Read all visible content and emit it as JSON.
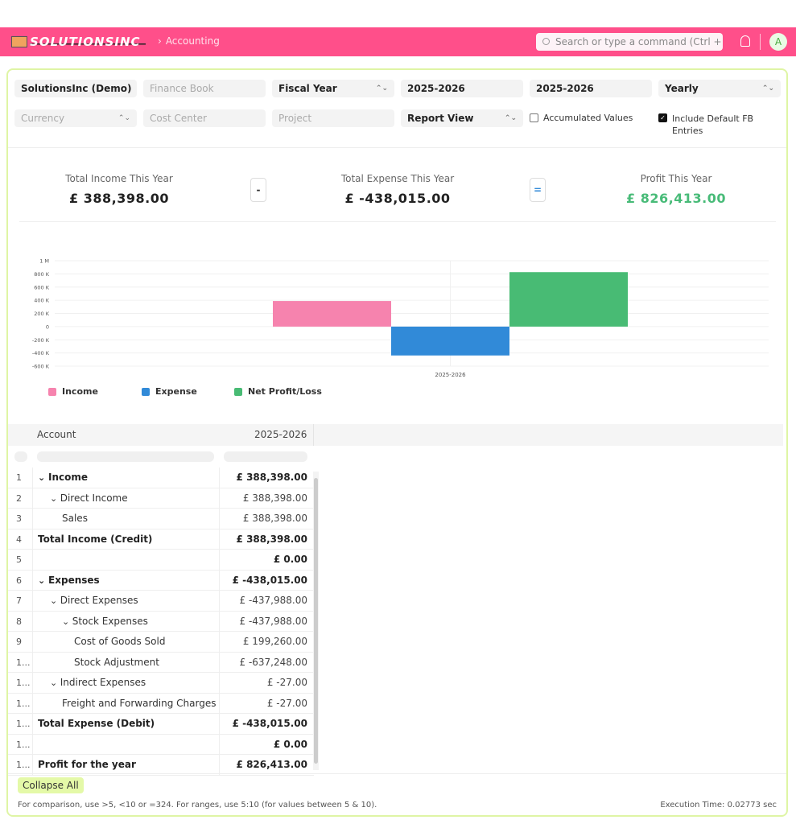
{
  "navbar": {
    "brand": "SOLUTIONSINC",
    "breadcrumb": "Accounting",
    "search_placeholder": "Search or type a command (Ctrl + G)",
    "avatar_initial": "A",
    "accent": "#ff4f8a"
  },
  "filters": {
    "company": "SolutionsInc (Demo)",
    "finance_book": "Finance Book",
    "filter_based_on": "Fiscal Year",
    "from_fiscal_year": "2025-2026",
    "to_fiscal_year": "2025-2026",
    "periodicity": "Yearly",
    "currency": "Currency",
    "cost_center": "Cost Center",
    "project": "Project",
    "report_view": "Report View",
    "accumulated_values": {
      "label": "Accumulated Values",
      "checked": false
    },
    "include_default_fb": {
      "label": "Include Default FB Entries",
      "checked": true
    }
  },
  "summary": {
    "income_label": "Total Income This Year",
    "income_value": "£ 388,398.00",
    "minus_symbol": "-",
    "expense_label": "Total Expense This Year",
    "expense_value": "£ -438,015.00",
    "equals_symbol": "=",
    "profit_label": "Profit This Year",
    "profit_value": "£ 826,413.00"
  },
  "chart_data": {
    "type": "bar",
    "categories": [
      "2025-2026"
    ],
    "series": [
      {
        "name": "Income",
        "values": [
          388398
        ],
        "color": "#f683ae"
      },
      {
        "name": "Expense",
        "values": [
          -438015
        ],
        "color": "#318ad8"
      },
      {
        "name": "Net Profit/Loss",
        "values": [
          826413
        ],
        "color": "#48bb74"
      }
    ],
    "yticks": [
      "1 M",
      "800 K",
      "600 K",
      "400 K",
      "200 K",
      "0",
      "-200 K",
      "-400 K",
      "-600 K"
    ],
    "ytick_values": [
      1000000,
      800000,
      600000,
      400000,
      200000,
      0,
      -200000,
      -400000,
      -600000
    ],
    "ylim": [
      -600000,
      1000000
    ],
    "grid": true,
    "legend_position": "bottom-left"
  },
  "table": {
    "columns": [
      "Account",
      "2025-2026"
    ],
    "rows": [
      {
        "num": "1",
        "account": "Income",
        "amount": "£ 388,398.00",
        "indent": 0,
        "bold": true,
        "toggle": true
      },
      {
        "num": "2",
        "account": "Direct Income",
        "amount": "£ 388,398.00",
        "indent": 1,
        "bold": false,
        "toggle": true
      },
      {
        "num": "3",
        "account": "Sales",
        "amount": "£ 388,398.00",
        "indent": 2,
        "bold": false,
        "toggle": false
      },
      {
        "num": "4",
        "account": "Total Income (Credit)",
        "amount": "£ 388,398.00",
        "indent": 0,
        "bold": true,
        "toggle": false
      },
      {
        "num": "5",
        "account": "",
        "amount": "£ 0.00",
        "indent": 0,
        "bold": true,
        "toggle": false
      },
      {
        "num": "6",
        "account": "Expenses",
        "amount": "£ -438,015.00",
        "indent": 0,
        "bold": true,
        "toggle": true
      },
      {
        "num": "7",
        "account": "Direct Expenses",
        "amount": "£ -437,988.00",
        "indent": 1,
        "bold": false,
        "toggle": true
      },
      {
        "num": "8",
        "account": "Stock Expenses",
        "amount": "£ -437,988.00",
        "indent": 2,
        "bold": false,
        "toggle": true
      },
      {
        "num": "9",
        "account": "Cost of Goods Sold",
        "amount": "£ 199,260.00",
        "indent": 3,
        "bold": false,
        "toggle": false
      },
      {
        "num": "1...",
        "account": "Stock Adjustment",
        "amount": "£ -637,248.00",
        "indent": 3,
        "bold": false,
        "toggle": false
      },
      {
        "num": "1...",
        "account": "Indirect Expenses",
        "amount": "£ -27.00",
        "indent": 1,
        "bold": false,
        "toggle": true
      },
      {
        "num": "1...",
        "account": "Freight and Forwarding Charges",
        "amount": "£ -27.00",
        "indent": 2,
        "bold": false,
        "toggle": false
      },
      {
        "num": "1...",
        "account": "Total Expense (Debit)",
        "amount": "£ -438,015.00",
        "indent": 0,
        "bold": true,
        "toggle": false
      },
      {
        "num": "1...",
        "account": "",
        "amount": "£ 0.00",
        "indent": 0,
        "bold": true,
        "toggle": false
      },
      {
        "num": "1...",
        "account": "Profit for the year",
        "amount": "£ 826,413.00",
        "indent": 0,
        "bold": true,
        "toggle": false
      }
    ]
  },
  "footer": {
    "collapse_label": "Collapse All",
    "hint": "For comparison, use >5, <10 or =324. For ranges, use 5:10 (for values between 5 & 10).",
    "execution_time": "Execution Time: 0.02773 sec"
  }
}
